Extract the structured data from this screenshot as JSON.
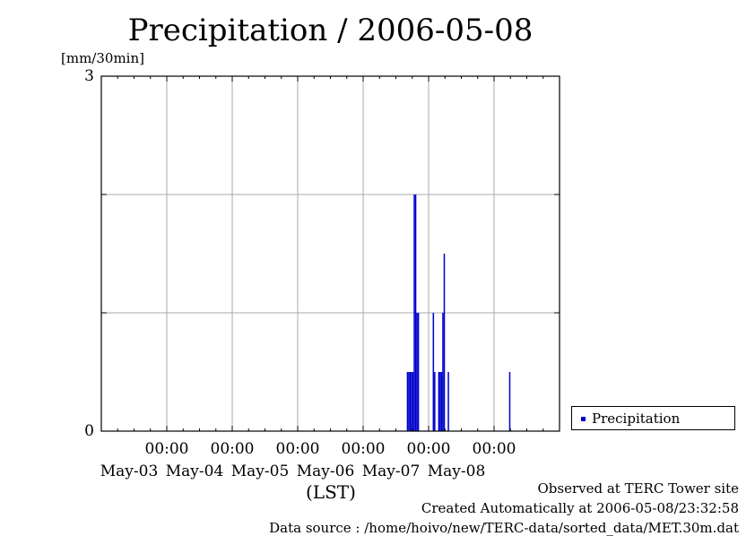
{
  "chart_data": {
    "type": "bar",
    "title": "Precipitation / 2006-05-08",
    "ylabel": "[mm/30min]",
    "xlabel": "(LST)",
    "ylim": [
      0,
      3
    ],
    "y_tick_labels": [
      "0",
      "3"
    ],
    "x_tick_labels": [
      {
        "time": "00:00",
        "date": "May-03"
      },
      {
        "time": "00:00",
        "date": "May-04"
      },
      {
        "time": "00:00",
        "date": "May-05"
      },
      {
        "time": "00:00",
        "date": "May-06"
      },
      {
        "time": "00:00",
        "date": "May-07"
      },
      {
        "time": "00:00",
        "date": "May-08"
      }
    ],
    "xlim": [
      "2006-05-02 00:00",
      "2006-05-08 24:00"
    ],
    "grid": true,
    "legend_position": "right",
    "series": [
      {
        "name": "Precipitation",
        "color": "#0000cc",
        "points": [
          {
            "t": "2006-05-06 16:00",
            "v": 0.5
          },
          {
            "t": "2006-05-06 16:30",
            "v": 0.5
          },
          {
            "t": "2006-05-06 17:00",
            "v": 0.5
          },
          {
            "t": "2006-05-06 17:30",
            "v": 0.5
          },
          {
            "t": "2006-05-06 18:00",
            "v": 0.5
          },
          {
            "t": "2006-05-06 18:30",
            "v": 2.0
          },
          {
            "t": "2006-05-06 19:00",
            "v": 2.0
          },
          {
            "t": "2006-05-06 19:30",
            "v": 1.0
          },
          {
            "t": "2006-05-06 20:00",
            "v": 1.0
          },
          {
            "t": "2006-05-07 01:30",
            "v": 1.0
          },
          {
            "t": "2006-05-07 02:00",
            "v": 0.5
          },
          {
            "t": "2006-05-07 03:30",
            "v": 0.5
          },
          {
            "t": "2006-05-07 04:00",
            "v": 0.5
          },
          {
            "t": "2006-05-07 04:30",
            "v": 0.5
          },
          {
            "t": "2006-05-07 05:00",
            "v": 1.0
          },
          {
            "t": "2006-05-07 05:30",
            "v": 1.5
          },
          {
            "t": "2006-05-07 07:00",
            "v": 0.5
          },
          {
            "t": "2006-05-08 05:30",
            "v": 0.5
          }
        ]
      }
    ],
    "legend": [
      "Precipitation"
    ]
  },
  "footer": {
    "observed": "Observed at TERC Tower site",
    "created": "Created Automatically at 2006-05-08/23:32:58",
    "source": "Data source : /home/hoivo/new/TERC-data/sorted_data/MET.30m.dat"
  }
}
